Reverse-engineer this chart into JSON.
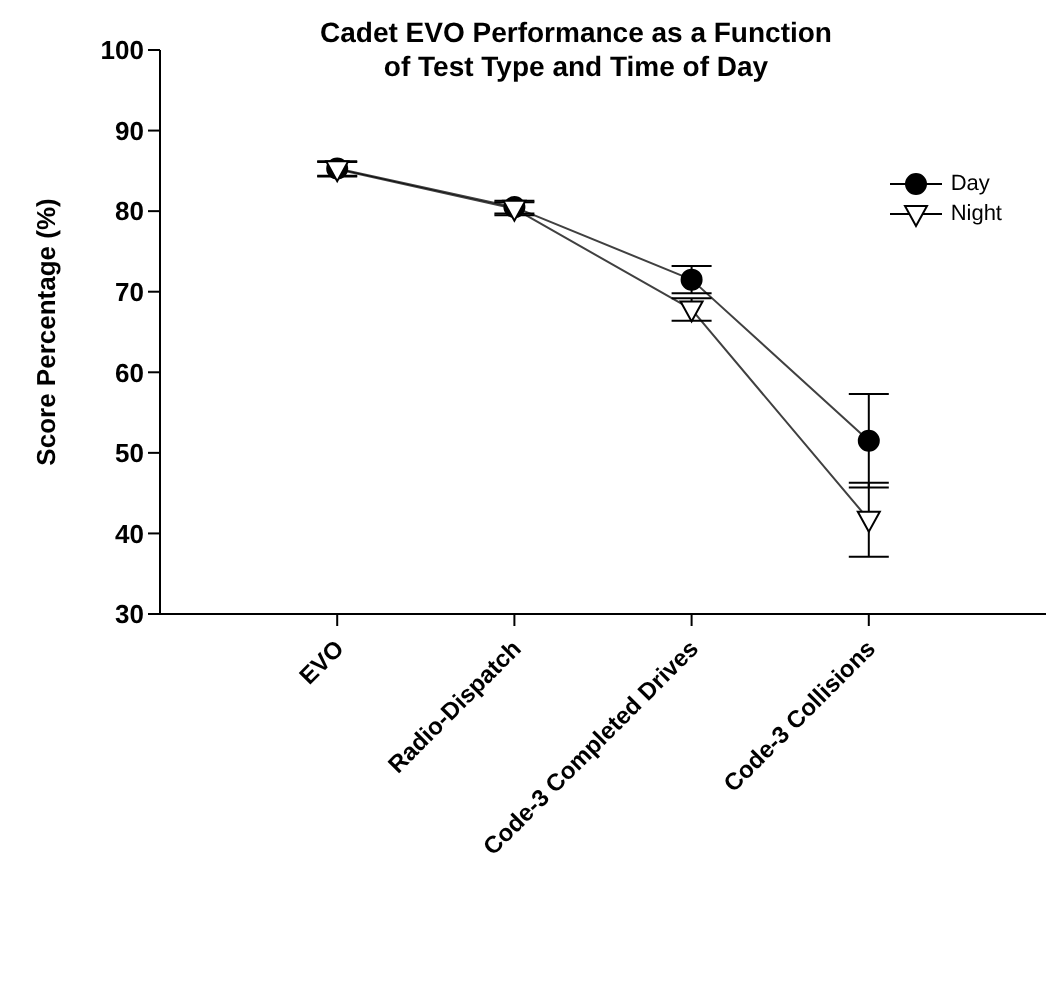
{
  "chart_data": {
    "type": "line",
    "title": "Cadet EVO Performance as a Function\nof Test Type and Time of Day",
    "ylabel": "Score Percentage (%)",
    "categories": [
      "EVO",
      "Radio-Dispatch",
      "Code-3 Completed Drives",
      "Code-3 Collisions"
    ],
    "series": [
      {
        "name": "Day",
        "color": "#000000",
        "marker": "circle",
        "values": [
          85.3,
          80.5,
          71.5,
          51.5
        ],
        "errors": [
          0.9,
          0.8,
          1.7,
          5.8
        ]
      },
      {
        "name": "Night",
        "color": "#000000",
        "marker": "triangle",
        "values": [
          85.2,
          80.3,
          67.8,
          41.7
        ],
        "errors": [
          0.9,
          0.8,
          1.4,
          4.6
        ]
      }
    ],
    "ylim": [
      30,
      100
    ],
    "yticks": [
      30,
      40,
      50,
      60,
      70,
      80,
      90,
      100
    ],
    "legend": "top right"
  }
}
